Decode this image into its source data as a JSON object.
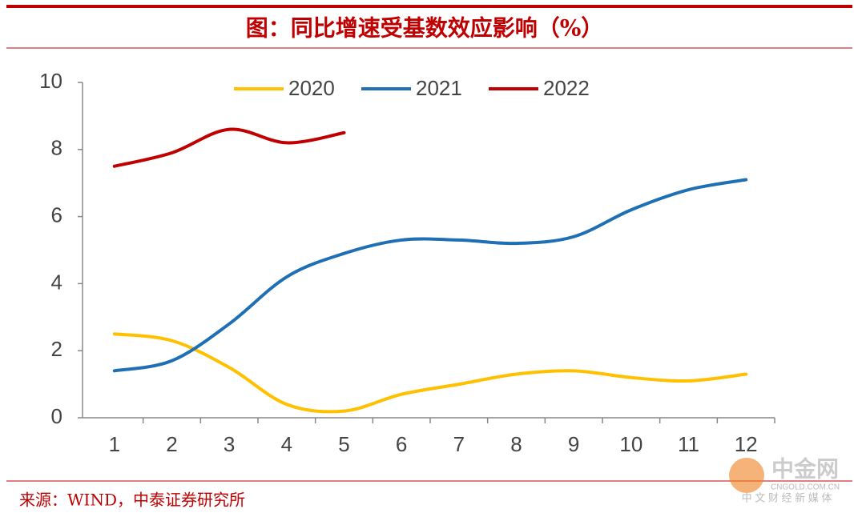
{
  "chart_data": {
    "type": "line",
    "title": "图：同比增速受基数效应影响（%）",
    "source": "来源：WIND，中泰证券研究所",
    "watermark": {
      "name": "中金网",
      "site": "CNGOLD.COM.CN",
      "tagline": "中 文 财 经 新 媒 体"
    },
    "categories": [
      "1",
      "2",
      "3",
      "4",
      "5",
      "6",
      "7",
      "8",
      "9",
      "10",
      "11",
      "12"
    ],
    "series": [
      {
        "name": "2020",
        "color": "#ffc000",
        "values": [
          2.5,
          2.3,
          1.5,
          0.4,
          0.2,
          0.7,
          1.0,
          1.3,
          1.4,
          1.2,
          1.1,
          1.3
        ]
      },
      {
        "name": "2021",
        "color": "#1f6fb5",
        "values": [
          1.4,
          1.7,
          2.8,
          4.2,
          4.9,
          5.3,
          5.3,
          5.2,
          5.4,
          6.2,
          6.8,
          7.1
        ]
      },
      {
        "name": "2022",
        "color": "#c00000",
        "values": [
          7.5,
          7.9,
          8.6,
          8.2,
          8.5,
          null,
          null,
          null,
          null,
          null,
          null,
          null
        ]
      }
    ],
    "ylim": [
      0,
      10
    ],
    "yticks": [
      0,
      2,
      4,
      6,
      8,
      10
    ],
    "grid": false,
    "legend": "top"
  }
}
